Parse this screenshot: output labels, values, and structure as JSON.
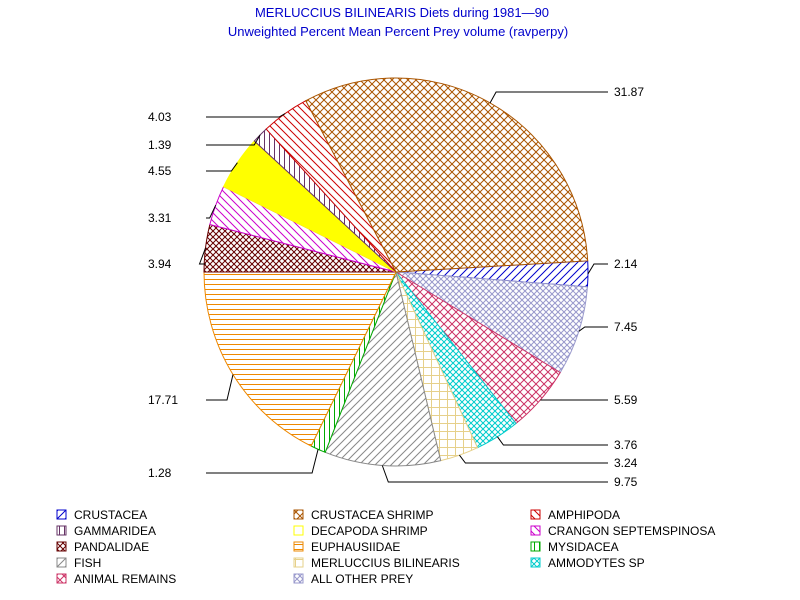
{
  "chart_data": {
    "type": "pie",
    "title": "MERLUCCIUS BILINEARIS Diets during 1981—90",
    "subtitle": "Unweighted Percent Mean Percent Prey  volume (ravperpy)",
    "slices": [
      {
        "name": "CRUSTACEA",
        "value": 2.14,
        "label": "2.14",
        "color": "#0000cc",
        "pattern": "diag-up",
        "label_side": "right"
      },
      {
        "name": "ALL OTHER PREY",
        "value": 7.45,
        "label": "7.45",
        "color": "#9999cc",
        "pattern": "crosshatch-fine",
        "label_side": "right"
      },
      {
        "name": "ANIMAL REMAINS",
        "value": 5.59,
        "label": "5.59",
        "color": "#cc3366",
        "pattern": "crosshatch",
        "label_side": "right"
      },
      {
        "name": "AMMODYTES SP",
        "value": 3.76,
        "label": "3.76",
        "color": "#00cccc",
        "pattern": "crosshatch-fine",
        "label_side": "right"
      },
      {
        "name": "MERLUCCIUS BILINEARIS",
        "value": 3.24,
        "label": "3.24",
        "color": "#e6d08a",
        "pattern": "grid",
        "label_side": "right"
      },
      {
        "name": "FISH",
        "value": 9.75,
        "label": "9.75",
        "color": "#888888",
        "pattern": "diag-up",
        "label_side": "right"
      },
      {
        "name": "MYSIDACEA",
        "value": 1.28,
        "label": "1.28",
        "color": "#00aa00",
        "pattern": "vertical",
        "label_side": "left"
      },
      {
        "name": "EUPHAUSIIDAE",
        "value": 17.71,
        "label": "17.71",
        "color": "#ee8800",
        "pattern": "horizontal",
        "label_side": "left"
      },
      {
        "name": "PANDALIDAE",
        "value": 3.94,
        "label": "3.94",
        "color": "#660000",
        "pattern": "crosshatch-dense",
        "label_side": "left"
      },
      {
        "name": "CRANGON SEPTEMSPINOSA",
        "value": 3.31,
        "label": "3.31",
        "color": "#cc00cc",
        "pattern": "diag-down",
        "label_side": "left"
      },
      {
        "name": "DECAPODA SHRIMP",
        "value": 4.55,
        "label": "4.55",
        "color": "#ffff00",
        "pattern": "solid",
        "label_side": "left"
      },
      {
        "name": "GAMMARIDEA",
        "value": 1.39,
        "label": "1.39",
        "color": "#663366",
        "pattern": "vertical",
        "label_side": "left"
      },
      {
        "name": "AMPHIPODA",
        "value": 4.03,
        "label": "4.03",
        "color": "#cc0000",
        "pattern": "diag-down",
        "label_side": "left"
      },
      {
        "name": "CRUSTACEA SHRIMP",
        "value": 31.87,
        "label": "31.87",
        "color": "#aa5500",
        "pattern": "crosshatch",
        "label_side": "right"
      }
    ],
    "legend": {
      "placement": "bottom",
      "columns": 3,
      "entries": [
        {
          "name": "CRUSTACEA",
          "color": "#0000cc",
          "pattern": "diag-up"
        },
        {
          "name": "CRUSTACEA SHRIMP",
          "color": "#aa5500",
          "pattern": "crosshatch"
        },
        {
          "name": "AMPHIPODA",
          "color": "#cc0000",
          "pattern": "diag-down"
        },
        {
          "name": "GAMMARIDEA",
          "color": "#663366",
          "pattern": "vertical"
        },
        {
          "name": "DECAPODA SHRIMP",
          "color": "#ffff00",
          "pattern": "solid"
        },
        {
          "name": "CRANGON SEPTEMSPINOSA",
          "color": "#cc00cc",
          "pattern": "diag-down"
        },
        {
          "name": "PANDALIDAE",
          "color": "#660000",
          "pattern": "crosshatch-dense"
        },
        {
          "name": "EUPHAUSIIDAE",
          "color": "#ee8800",
          "pattern": "horizontal"
        },
        {
          "name": "MYSIDACEA",
          "color": "#00aa00",
          "pattern": "vertical"
        },
        {
          "name": "FISH",
          "color": "#888888",
          "pattern": "diag-up"
        },
        {
          "name": "MERLUCCIUS BILINEARIS",
          "color": "#e6d08a",
          "pattern": "grid"
        },
        {
          "name": "AMMODYTES SP",
          "color": "#00cccc",
          "pattern": "crosshatch-fine"
        },
        {
          "name": "ANIMAL REMAINS",
          "color": "#cc3366",
          "pattern": "crosshatch"
        },
        {
          "name": "ALL OTHER PREY",
          "color": "#9999cc",
          "pattern": "crosshatch-fine"
        }
      ]
    }
  }
}
